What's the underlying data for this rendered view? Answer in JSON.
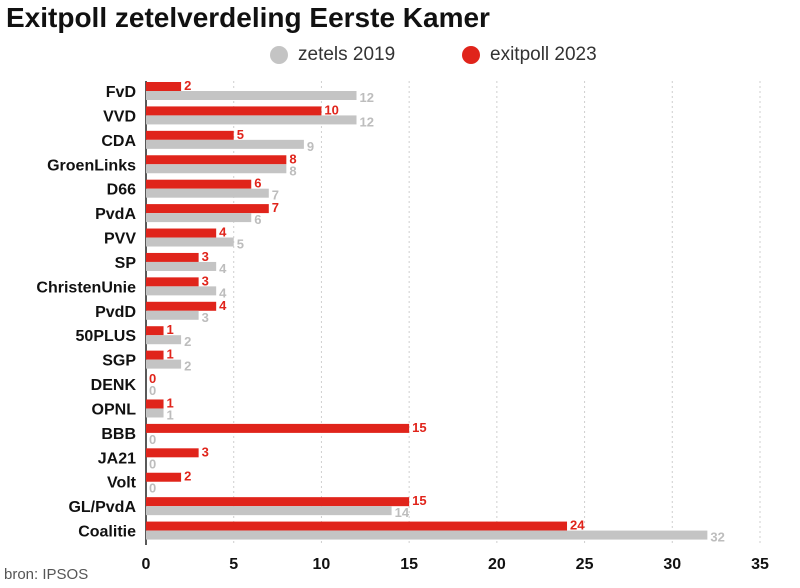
{
  "chart_data": {
    "type": "bar",
    "orientation": "horizontal",
    "title": "Exitpoll zetelverdeling Eerste Kamer",
    "source": "bron: IPSOS",
    "categories": [
      "FvD",
      "VVD",
      "CDA",
      "GroenLinks",
      "D66",
      "PvdA",
      "PVV",
      "SP",
      "ChristenUnie",
      "PvdD",
      "50PLUS",
      "SGP",
      "DENK",
      "OPNL",
      "BBB",
      "JA21",
      "Volt",
      "GL/PvdA",
      "Coalitie"
    ],
    "series": [
      {
        "name": "exitpoll 2023",
        "color": "#e0241b",
        "values": [
          2,
          10,
          5,
          8,
          6,
          7,
          4,
          3,
          3,
          4,
          1,
          1,
          0,
          1,
          15,
          3,
          2,
          15,
          24
        ]
      },
      {
        "name": "zetels 2019",
        "color": "#c4c4c4",
        "values": [
          12,
          12,
          9,
          8,
          7,
          6,
          5,
          4,
          4,
          3,
          2,
          2,
          0,
          1,
          0,
          0,
          0,
          14,
          32
        ]
      }
    ],
    "legend_order": [
      "zetels 2019",
      "exitpoll 2023"
    ],
    "legend_position": "top",
    "xlim": [
      0,
      35
    ],
    "xticks": [
      0,
      5,
      10,
      15,
      20,
      25,
      30,
      35
    ],
    "grid": "vertical dashed",
    "xlabel": "",
    "ylabel": ""
  }
}
